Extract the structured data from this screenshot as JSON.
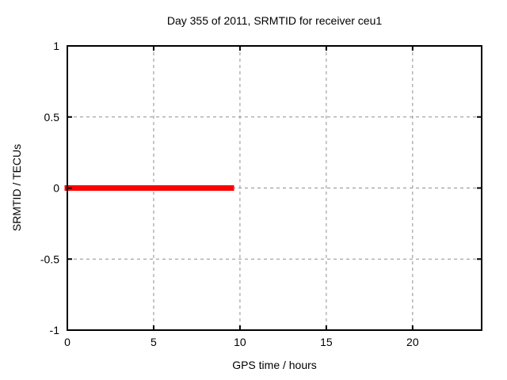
{
  "chart_data": {
    "type": "line",
    "title": "Day 355 of 2011, SRMTID for receiver ceu1",
    "xlabel": "GPS time / hours",
    "ylabel": "SRMTID / TECUs",
    "xlim": [
      0,
      24
    ],
    "ylim": [
      -1,
      1
    ],
    "xticks": [
      0,
      5,
      10,
      15,
      20
    ],
    "yticks": [
      1,
      0.5,
      0,
      -0.5,
      -1
    ],
    "grid": true,
    "legend": "none",
    "series": [
      {
        "name": "SRMTID",
        "color": "#ff0000",
        "linewidth": 7,
        "x": [
          0,
          9.5
        ],
        "y": [
          0,
          0
        ]
      }
    ]
  },
  "colors": {
    "background": "#ffffff",
    "border": "#000000",
    "grid": "#909090",
    "text": "#000000",
    "line": "#ff0000"
  }
}
